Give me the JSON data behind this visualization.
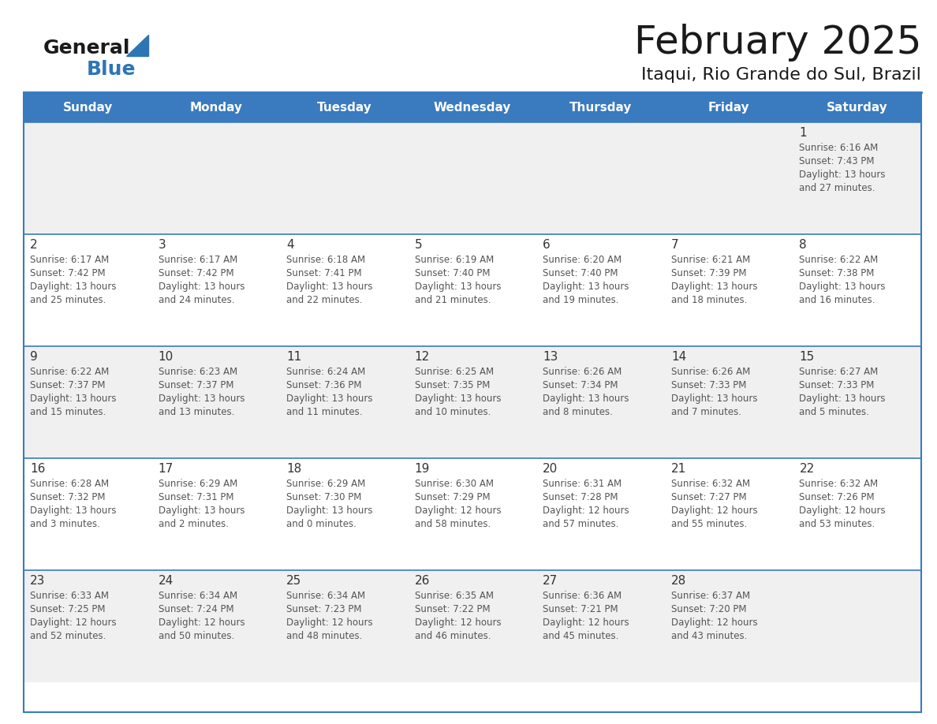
{
  "title": "February 2025",
  "subtitle": "Itaqui, Rio Grande do Sul, Brazil",
  "header_bg": "#3a7abf",
  "header_text_color": "#ffffff",
  "cell_bg_white": "#ffffff",
  "cell_bg_gray": "#f0f0f0",
  "day_number_color": "#333333",
  "text_color": "#555555",
  "border_color": "#3a7abf",
  "days_of_week": [
    "Sunday",
    "Monday",
    "Tuesday",
    "Wednesday",
    "Thursday",
    "Friday",
    "Saturday"
  ],
  "calendar": [
    [
      {
        "day": null,
        "sunrise": null,
        "sunset": null,
        "daylight": null
      },
      {
        "day": null,
        "sunrise": null,
        "sunset": null,
        "daylight": null
      },
      {
        "day": null,
        "sunrise": null,
        "sunset": null,
        "daylight": null
      },
      {
        "day": null,
        "sunrise": null,
        "sunset": null,
        "daylight": null
      },
      {
        "day": null,
        "sunrise": null,
        "sunset": null,
        "daylight": null
      },
      {
        "day": null,
        "sunrise": null,
        "sunset": null,
        "daylight": null
      },
      {
        "day": 1,
        "sunrise": "6:16 AM",
        "sunset": "7:43 PM",
        "daylight": "13 hours and 27 minutes."
      }
    ],
    [
      {
        "day": 2,
        "sunrise": "6:17 AM",
        "sunset": "7:42 PM",
        "daylight": "13 hours and 25 minutes."
      },
      {
        "day": 3,
        "sunrise": "6:17 AM",
        "sunset": "7:42 PM",
        "daylight": "13 hours and 24 minutes."
      },
      {
        "day": 4,
        "sunrise": "6:18 AM",
        "sunset": "7:41 PM",
        "daylight": "13 hours and 22 minutes."
      },
      {
        "day": 5,
        "sunrise": "6:19 AM",
        "sunset": "7:40 PM",
        "daylight": "13 hours and 21 minutes."
      },
      {
        "day": 6,
        "sunrise": "6:20 AM",
        "sunset": "7:40 PM",
        "daylight": "13 hours and 19 minutes."
      },
      {
        "day": 7,
        "sunrise": "6:21 AM",
        "sunset": "7:39 PM",
        "daylight": "13 hours and 18 minutes."
      },
      {
        "day": 8,
        "sunrise": "6:22 AM",
        "sunset": "7:38 PM",
        "daylight": "13 hours and 16 minutes."
      }
    ],
    [
      {
        "day": 9,
        "sunrise": "6:22 AM",
        "sunset": "7:37 PM",
        "daylight": "13 hours and 15 minutes."
      },
      {
        "day": 10,
        "sunrise": "6:23 AM",
        "sunset": "7:37 PM",
        "daylight": "13 hours and 13 minutes."
      },
      {
        "day": 11,
        "sunrise": "6:24 AM",
        "sunset": "7:36 PM",
        "daylight": "13 hours and 11 minutes."
      },
      {
        "day": 12,
        "sunrise": "6:25 AM",
        "sunset": "7:35 PM",
        "daylight": "13 hours and 10 minutes."
      },
      {
        "day": 13,
        "sunrise": "6:26 AM",
        "sunset": "7:34 PM",
        "daylight": "13 hours and 8 minutes."
      },
      {
        "day": 14,
        "sunrise": "6:26 AM",
        "sunset": "7:33 PM",
        "daylight": "13 hours and 7 minutes."
      },
      {
        "day": 15,
        "sunrise": "6:27 AM",
        "sunset": "7:33 PM",
        "daylight": "13 hours and 5 minutes."
      }
    ],
    [
      {
        "day": 16,
        "sunrise": "6:28 AM",
        "sunset": "7:32 PM",
        "daylight": "13 hours and 3 minutes."
      },
      {
        "day": 17,
        "sunrise": "6:29 AM",
        "sunset": "7:31 PM",
        "daylight": "13 hours and 2 minutes."
      },
      {
        "day": 18,
        "sunrise": "6:29 AM",
        "sunset": "7:30 PM",
        "daylight": "13 hours and 0 minutes."
      },
      {
        "day": 19,
        "sunrise": "6:30 AM",
        "sunset": "7:29 PM",
        "daylight": "12 hours and 58 minutes."
      },
      {
        "day": 20,
        "sunrise": "6:31 AM",
        "sunset": "7:28 PM",
        "daylight": "12 hours and 57 minutes."
      },
      {
        "day": 21,
        "sunrise": "6:32 AM",
        "sunset": "7:27 PM",
        "daylight": "12 hours and 55 minutes."
      },
      {
        "day": 22,
        "sunrise": "6:32 AM",
        "sunset": "7:26 PM",
        "daylight": "12 hours and 53 minutes."
      }
    ],
    [
      {
        "day": 23,
        "sunrise": "6:33 AM",
        "sunset": "7:25 PM",
        "daylight": "12 hours and 52 minutes."
      },
      {
        "day": 24,
        "sunrise": "6:34 AM",
        "sunset": "7:24 PM",
        "daylight": "12 hours and 50 minutes."
      },
      {
        "day": 25,
        "sunrise": "6:34 AM",
        "sunset": "7:23 PM",
        "daylight": "12 hours and 48 minutes."
      },
      {
        "day": 26,
        "sunrise": "6:35 AM",
        "sunset": "7:22 PM",
        "daylight": "12 hours and 46 minutes."
      },
      {
        "day": 27,
        "sunrise": "6:36 AM",
        "sunset": "7:21 PM",
        "daylight": "12 hours and 45 minutes."
      },
      {
        "day": 28,
        "sunrise": "6:37 AM",
        "sunset": "7:20 PM",
        "daylight": "12 hours and 43 minutes."
      },
      {
        "day": null,
        "sunrise": null,
        "sunset": null,
        "daylight": null
      }
    ]
  ],
  "logo_text1": "General",
  "logo_text2": "Blue",
  "logo_triangle_color": "#2e75b6",
  "title_fontsize": 36,
  "subtitle_fontsize": 16,
  "header_fontsize": 11,
  "day_num_fontsize": 11,
  "cell_text_fontsize": 8.5
}
